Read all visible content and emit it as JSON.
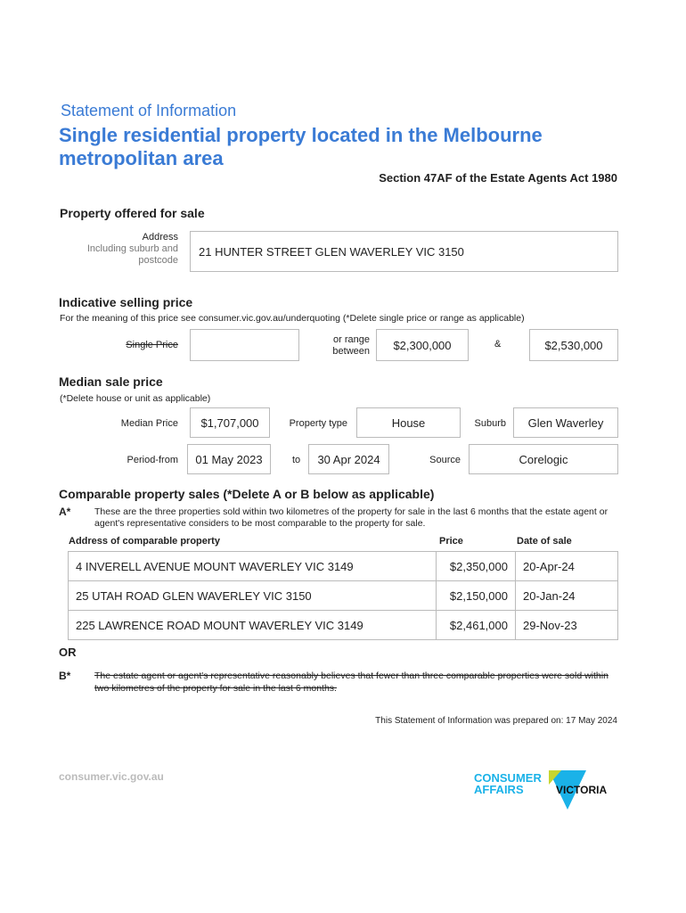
{
  "header": {
    "doc_type": "Statement of Information",
    "title_line1": "Single residential property located in the Melbourne",
    "title_line2": "metropolitan area",
    "act": "Section 47AF of the Estate Agents Act 1980"
  },
  "property": {
    "heading": "Property offered for sale",
    "label": "Address",
    "sublabel1": "Including suburb and",
    "sublabel2": "postcode",
    "address": "21 HUNTER STREET GLEN WAVERLEY VIC 3150"
  },
  "indicative": {
    "heading": "Indicative selling price",
    "note": "For the meaning of this price see consumer.vic.gov.au/underquoting (*Delete single price or range as applicable)",
    "single_label": "Single Price",
    "single_value": "",
    "range_label1": "or range",
    "range_label2": "between",
    "low": "$2,300,000",
    "amp": "&",
    "high": "$2,530,000"
  },
  "median": {
    "heading": "Median sale price",
    "note": "(*Delete house or unit as applicable)",
    "price_label": "Median Price",
    "price": "$1,707,000",
    "type_label": "Property type",
    "type": "House",
    "suburb_label": "Suburb",
    "suburb": "Glen Waverley",
    "period_label": "Period-from",
    "from": "01 May 2023",
    "to_label": "to",
    "to": "30 Apr 2024",
    "source_label": "Source",
    "source": "Corelogic"
  },
  "comparable": {
    "heading": "Comparable property sales (*Delete A or B below as applicable)",
    "a_label": "A*",
    "a_text": "These are the three properties sold within two kilometres of the property for sale in the last 6 months that the estate agent or agent's representative considers to be most comparable to the property for sale.",
    "columns": [
      "Address of comparable property",
      "Price",
      "Date of sale"
    ],
    "rows": [
      [
        "4 INVERELL AVENUE MOUNT WAVERLEY VIC 3149",
        "$2,350,000",
        "20-Apr-24"
      ],
      [
        "25 UTAH ROAD GLEN WAVERLEY VIC 3150",
        "$2,150,000",
        "20-Jan-24"
      ],
      [
        "225 LAWRENCE ROAD MOUNT WAVERLEY VIC 3149",
        "$2,461,000",
        "29-Nov-23"
      ]
    ],
    "or": "OR",
    "b_label": "B*",
    "b_text": "The estate agent or agent's representative reasonably believes that fewer than three comparable properties were sold within two kilometres of the property for sale in the last 6 months."
  },
  "footer": {
    "prepared": "This Statement of Information was prepared on: 17 May 2024",
    "website": "consumer.vic.gov.au",
    "logo_text": [
      "CONSUMER",
      "AFFAIRS",
      "VICTORIA"
    ]
  },
  "colors": {
    "brand_blue": "#3a7bd5",
    "logo_cyan": "#1ab2e8",
    "logo_lime": "#c7d530"
  }
}
